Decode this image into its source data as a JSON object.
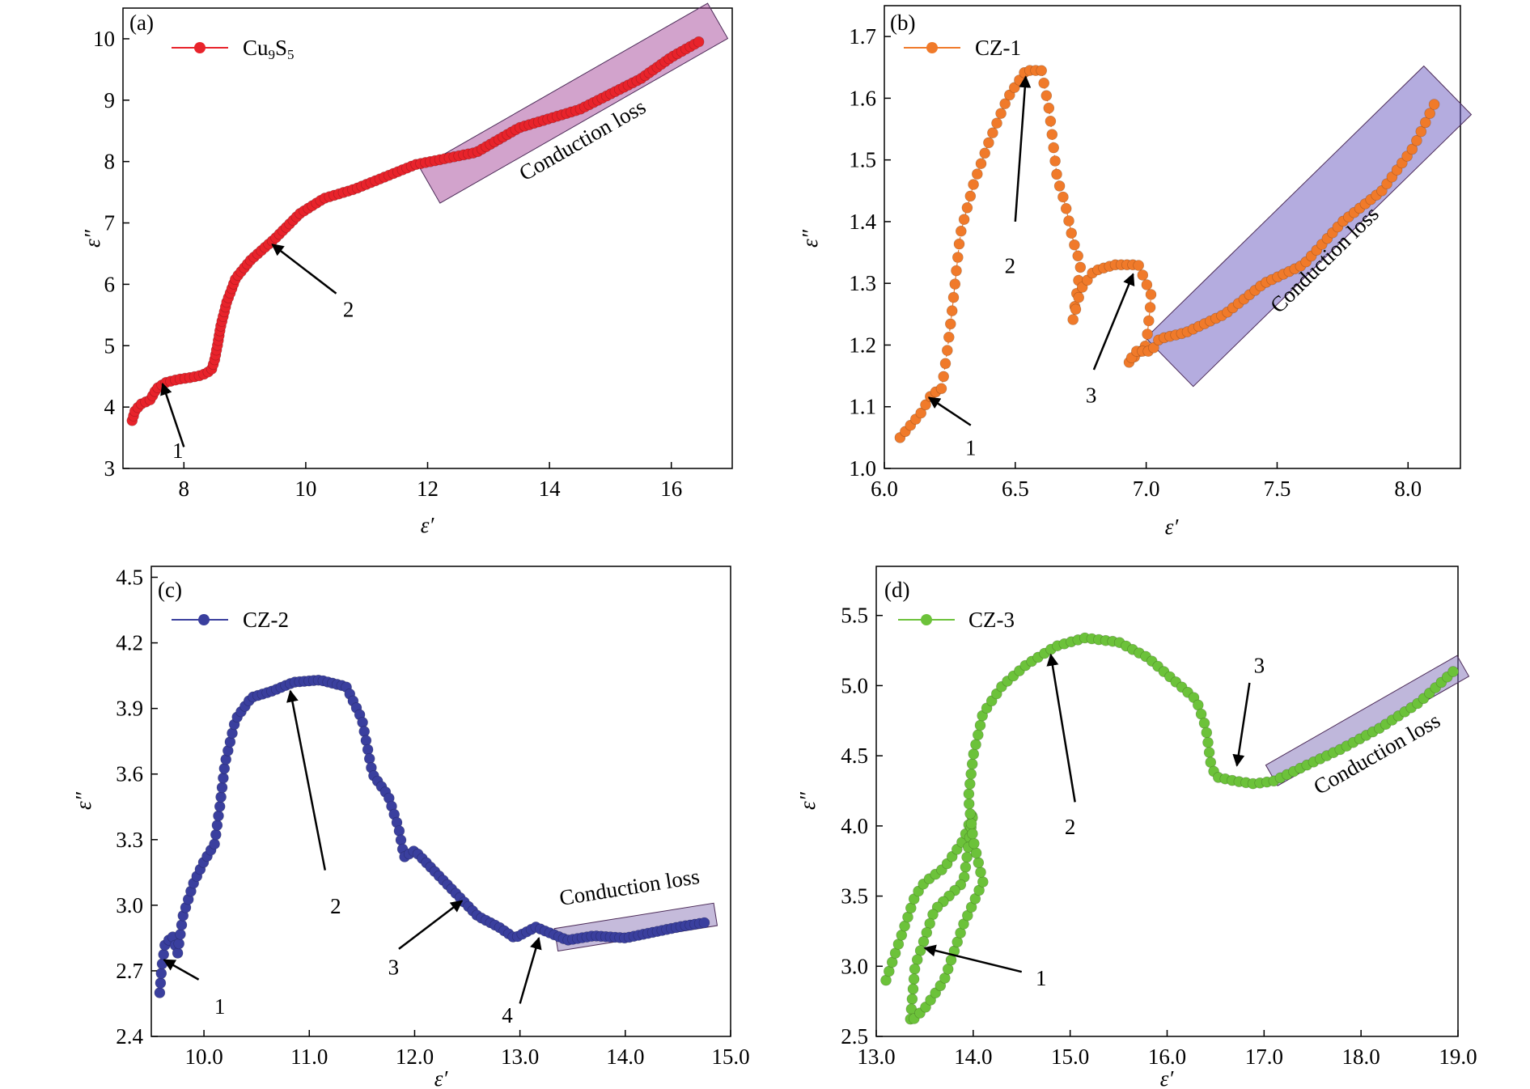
{
  "axis_labels": {
    "x": "ε′",
    "y": "ε″"
  },
  "panels": [
    {
      "panel_label": "(a)",
      "legend_main": "Cu",
      "legend_sub1": "9",
      "legend_mid": "S",
      "legend_sub2": "5",
      "color": "#e8232b",
      "shade_color": "#a5479a",
      "shade_label": "Conduction loss",
      "xlim": [
        7.0,
        17.0
      ],
      "ylim": [
        3,
        10.5
      ],
      "xticks": [
        8,
        10,
        12,
        14,
        16
      ],
      "yticks": [
        3,
        4,
        5,
        6,
        7,
        8,
        9,
        10
      ],
      "tick_decimals": 0,
      "anchor_points": [
        [
          7.15,
          3.78
        ],
        [
          7.2,
          3.95
        ],
        [
          7.3,
          4.05
        ],
        [
          7.45,
          4.12
        ],
        [
          7.55,
          4.3
        ],
        [
          7.7,
          4.4
        ],
        [
          7.9,
          4.45
        ],
        [
          8.1,
          4.48
        ],
        [
          8.3,
          4.52
        ],
        [
          8.45,
          4.6
        ],
        [
          8.5,
          4.75
        ],
        [
          8.55,
          5.0
        ],
        [
          8.6,
          5.3
        ],
        [
          8.7,
          5.7
        ],
        [
          8.85,
          6.1
        ],
        [
          9.1,
          6.4
        ],
        [
          9.5,
          6.75
        ],
        [
          9.9,
          7.15
        ],
        [
          10.3,
          7.4
        ],
        [
          10.8,
          7.55
        ],
        [
          11.3,
          7.75
        ],
        [
          11.8,
          7.95
        ],
        [
          12.3,
          8.05
        ],
        [
          12.8,
          8.15
        ],
        [
          13.5,
          8.55
        ],
        [
          14.0,
          8.7
        ],
        [
          14.5,
          8.85
        ],
        [
          15.0,
          9.1
        ],
        [
          15.5,
          9.35
        ],
        [
          16.0,
          9.7
        ],
        [
          16.45,
          9.95
        ]
      ],
      "n_markers": 150,
      "shade_from": [
        12.2,
        7.7
      ],
      "shade_to": [
        16.6,
        10.2
      ],
      "shade_halfwidth": 0.33,
      "shade_label_pos": [
        14.6,
        8.25
      ],
      "annotations": [
        {
          "label": "1",
          "tail": [
            8.0,
            3.35
          ],
          "head": [
            7.65,
            4.38
          ],
          "text": [
            7.9,
            3.3
          ]
        },
        {
          "label": "2",
          "tail": [
            10.5,
            5.85
          ],
          "head": [
            9.45,
            6.65
          ],
          "text": [
            10.7,
            5.6
          ]
        }
      ]
    },
    {
      "panel_label": "(b)",
      "legend_main": "CZ-1",
      "color": "#f07a2a",
      "shade_color": "#6a5abf",
      "shade_label": "Conduction loss",
      "xlim": [
        6.0,
        8.2
      ],
      "ylim": [
        1.0,
        1.75
      ],
      "xticks": [
        6.0,
        6.5,
        7.0,
        7.5,
        8.0
      ],
      "yticks": [
        1.0,
        1.1,
        1.2,
        1.3,
        1.4,
        1.5,
        1.6,
        1.7
      ],
      "tick_decimals": 1,
      "anchor_points": [
        [
          6.06,
          1.05
        ],
        [
          6.1,
          1.07
        ],
        [
          6.14,
          1.09
        ],
        [
          6.18,
          1.12
        ],
        [
          6.22,
          1.13
        ],
        [
          6.24,
          1.19
        ],
        [
          6.26,
          1.26
        ],
        [
          6.29,
          1.38
        ],
        [
          6.34,
          1.46
        ],
        [
          6.4,
          1.53
        ],
        [
          6.47,
          1.6
        ],
        [
          6.54,
          1.645
        ],
        [
          6.6,
          1.645
        ],
        [
          6.63,
          1.58
        ],
        [
          6.66,
          1.47
        ],
        [
          6.69,
          1.43
        ],
        [
          6.72,
          1.37
        ],
        [
          6.75,
          1.33
        ],
        [
          6.72,
          1.24
        ],
        [
          6.75,
          1.29
        ],
        [
          6.8,
          1.32
        ],
        [
          6.88,
          1.33
        ],
        [
          6.97,
          1.33
        ],
        [
          7.02,
          1.28
        ],
        [
          7.0,
          1.2
        ],
        [
          6.93,
          1.17
        ],
        [
          6.96,
          1.19
        ],
        [
          7.02,
          1.19
        ],
        [
          7.05,
          1.21
        ],
        [
          7.15,
          1.22
        ],
        [
          7.3,
          1.25
        ],
        [
          7.45,
          1.3
        ],
        [
          7.6,
          1.33
        ],
        [
          7.75,
          1.4
        ],
        [
          7.9,
          1.45
        ],
        [
          8.02,
          1.52
        ],
        [
          8.1,
          1.59
        ]
      ],
      "n_markers": 140,
      "shade_from": [
        7.12,
        1.185
      ],
      "shade_to": [
        8.12,
        1.6
      ],
      "shade_halfwidth": 0.055,
      "shade_label_pos": [
        7.7,
        1.33
      ],
      "annotations": [
        {
          "label": "1",
          "tail": [
            6.33,
            1.07
          ],
          "head": [
            6.17,
            1.115
          ],
          "text": [
            6.33,
            1.035
          ]
        },
        {
          "label": "2",
          "tail": [
            6.5,
            1.4
          ],
          "head": [
            6.54,
            1.635
          ],
          "text": [
            6.48,
            1.33
          ]
        },
        {
          "label": "3",
          "tail": [
            6.8,
            1.16
          ],
          "head": [
            6.95,
            1.315
          ],
          "text": [
            6.79,
            1.12
          ]
        }
      ]
    },
    {
      "panel_label": "(c)",
      "legend_main": "CZ-2",
      "color": "#3a3f9e",
      "shade_color": "#8c78b8",
      "shade_label": "Conduction loss",
      "xlim": [
        9.5,
        15.0
      ],
      "ylim": [
        2.4,
        4.55
      ],
      "xticks": [
        10,
        11,
        12,
        13,
        14,
        15
      ],
      "yticks": [
        2.4,
        2.7,
        3.0,
        3.3,
        3.6,
        3.9,
        4.2,
        4.5
      ],
      "tick_decimals": 1,
      "anchor_points": [
        [
          9.58,
          2.6
        ],
        [
          9.6,
          2.72
        ],
        [
          9.63,
          2.82
        ],
        [
          9.7,
          2.86
        ],
        [
          9.75,
          2.78
        ],
        [
          9.8,
          2.95
        ],
        [
          9.9,
          3.1
        ],
        [
          10.0,
          3.2
        ],
        [
          10.1,
          3.28
        ],
        [
          10.15,
          3.45
        ],
        [
          10.2,
          3.65
        ],
        [
          10.3,
          3.85
        ],
        [
          10.45,
          3.95
        ],
        [
          10.65,
          3.98
        ],
        [
          10.85,
          4.02
        ],
        [
          11.1,
          4.03
        ],
        [
          11.35,
          4.0
        ],
        [
          11.5,
          3.85
        ],
        [
          11.6,
          3.6
        ],
        [
          11.75,
          3.5
        ],
        [
          11.85,
          3.35
        ],
        [
          11.9,
          3.22
        ],
        [
          12.0,
          3.25
        ],
        [
          12.2,
          3.15
        ],
        [
          12.4,
          3.05
        ],
        [
          12.6,
          2.95
        ],
        [
          12.8,
          2.9
        ],
        [
          12.95,
          2.85
        ],
        [
          13.15,
          2.9
        ],
        [
          13.3,
          2.87
        ],
        [
          13.45,
          2.84
        ],
        [
          13.7,
          2.86
        ],
        [
          14.0,
          2.85
        ],
        [
          14.3,
          2.88
        ],
        [
          14.5,
          2.9
        ],
        [
          14.75,
          2.92
        ]
      ],
      "n_markers": 150,
      "shade_from": [
        13.45,
        2.85
      ],
      "shade_to": [
        14.75,
        2.95
      ],
      "shade_halfwidth": 0.052,
      "shade_label_pos": [
        14.05,
        3.05
      ],
      "annotations": [
        {
          "label": "1",
          "tail": [
            9.95,
            2.66
          ],
          "head": [
            9.62,
            2.75
          ],
          "text": [
            10.15,
            2.54
          ]
        },
        {
          "label": "2",
          "tail": [
            11.15,
            3.16
          ],
          "head": [
            10.82,
            3.98
          ],
          "text": [
            11.25,
            3.0
          ]
        },
        {
          "label": "3",
          "tail": [
            11.85,
            2.8
          ],
          "head": [
            12.45,
            3.02
          ],
          "text": [
            11.8,
            2.72
          ]
        },
        {
          "label": "4",
          "tail": [
            13.0,
            2.55
          ],
          "head": [
            13.18,
            2.85
          ],
          "text": [
            12.88,
            2.5
          ]
        }
      ]
    },
    {
      "panel_label": "(d)",
      "legend_main": "CZ-3",
      "color": "#6cc23a",
      "shade_color": "#8070b8",
      "shade_label": "Conduction loss",
      "xlim": [
        13,
        19
      ],
      "ylim": [
        2.5,
        5.85
      ],
      "xticks": [
        13,
        14,
        15,
        16,
        17,
        18,
        19
      ],
      "yticks": [
        2.5,
        3.0,
        3.5,
        4.0,
        4.5,
        5.0,
        5.5
      ],
      "tick_decimals": 1,
      "anchor_points": [
        [
          13.1,
          2.9
        ],
        [
          13.2,
          3.1
        ],
        [
          13.3,
          3.3
        ],
        [
          13.4,
          3.5
        ],
        [
          13.5,
          3.6
        ],
        [
          13.7,
          3.7
        ],
        [
          13.9,
          3.9
        ],
        [
          14.0,
          4.1
        ],
        [
          13.9,
          3.6
        ],
        [
          13.6,
          3.4
        ],
        [
          13.4,
          3.0
        ],
        [
          13.35,
          2.6
        ],
        [
          13.5,
          2.7
        ],
        [
          13.7,
          2.9
        ],
        [
          13.9,
          3.3
        ],
        [
          14.1,
          3.6
        ],
        [
          14.0,
          3.9
        ],
        [
          13.95,
          4.2
        ],
        [
          14.0,
          4.5
        ],
        [
          14.1,
          4.8
        ],
        [
          14.3,
          5.0
        ],
        [
          14.55,
          5.15
        ],
        [
          14.85,
          5.28
        ],
        [
          15.15,
          5.34
        ],
        [
          15.5,
          5.31
        ],
        [
          15.8,
          5.2
        ],
        [
          16.1,
          5.02
        ],
        [
          16.3,
          4.9
        ],
        [
          16.4,
          4.7
        ],
        [
          16.45,
          4.45
        ],
        [
          16.5,
          4.35
        ],
        [
          16.7,
          4.32
        ],
        [
          16.9,
          4.3
        ],
        [
          17.1,
          4.32
        ],
        [
          17.4,
          4.42
        ],
        [
          17.8,
          4.55
        ],
        [
          18.2,
          4.7
        ],
        [
          18.6,
          4.88
        ],
        [
          18.95,
          5.1
        ]
      ],
      "n_markers": 160,
      "shade_from": [
        17.18,
        4.4
      ],
      "shade_to": [
        18.95,
        5.1
      ],
      "shade_halfwidth": 0.085,
      "shade_label_pos": [
        18.2,
        4.47
      ],
      "annotations": [
        {
          "label": "1",
          "tail": [
            14.5,
            2.96
          ],
          "head": [
            13.5,
            3.13
          ],
          "text": [
            14.7,
            2.92
          ]
        },
        {
          "label": "2",
          "tail": [
            15.05,
            4.17
          ],
          "head": [
            14.8,
            5.22
          ],
          "text": [
            15.0,
            4.0
          ]
        },
        {
          "label": "3",
          "tail": [
            16.85,
            5.02
          ],
          "head": [
            16.72,
            4.43
          ],
          "text": [
            16.95,
            5.15
          ]
        }
      ]
    }
  ]
}
